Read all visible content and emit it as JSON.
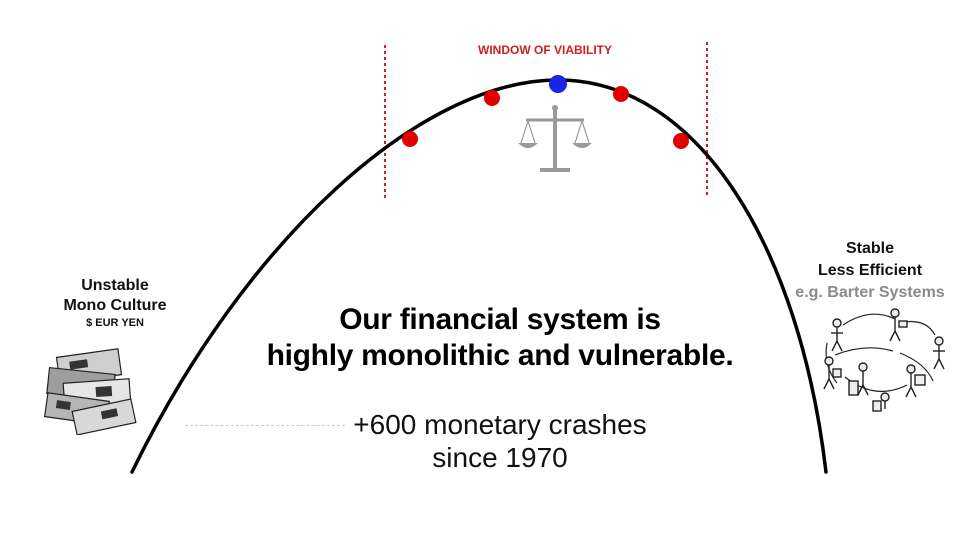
{
  "window": {
    "title": "WINDOW OF VIABILITY"
  },
  "left": {
    "line1": "Unstable",
    "line2": "Mono Culture",
    "line3": "$ EUR YEN"
  },
  "right": {
    "line1": "Stable",
    "line2": "Less Efficient",
    "line3": "e.g. Barter Systems"
  },
  "headline": {
    "line1": "Our financial system is",
    "line2": "highly monolithic and vulnerable."
  },
  "stat": {
    "line1": "+600 monetary crashes",
    "line2": "since 1970"
  },
  "colors": {
    "curve": "#000000",
    "window_lines": "#cc1f1f",
    "points": "#e00000",
    "optimum": "#1b24e0",
    "scale_icon": "#9a9a9a",
    "barter_label": "#8a8a8a"
  },
  "icons": [
    "balance-scale-icon",
    "banknotes-icon",
    "barter-people-icon"
  ]
}
